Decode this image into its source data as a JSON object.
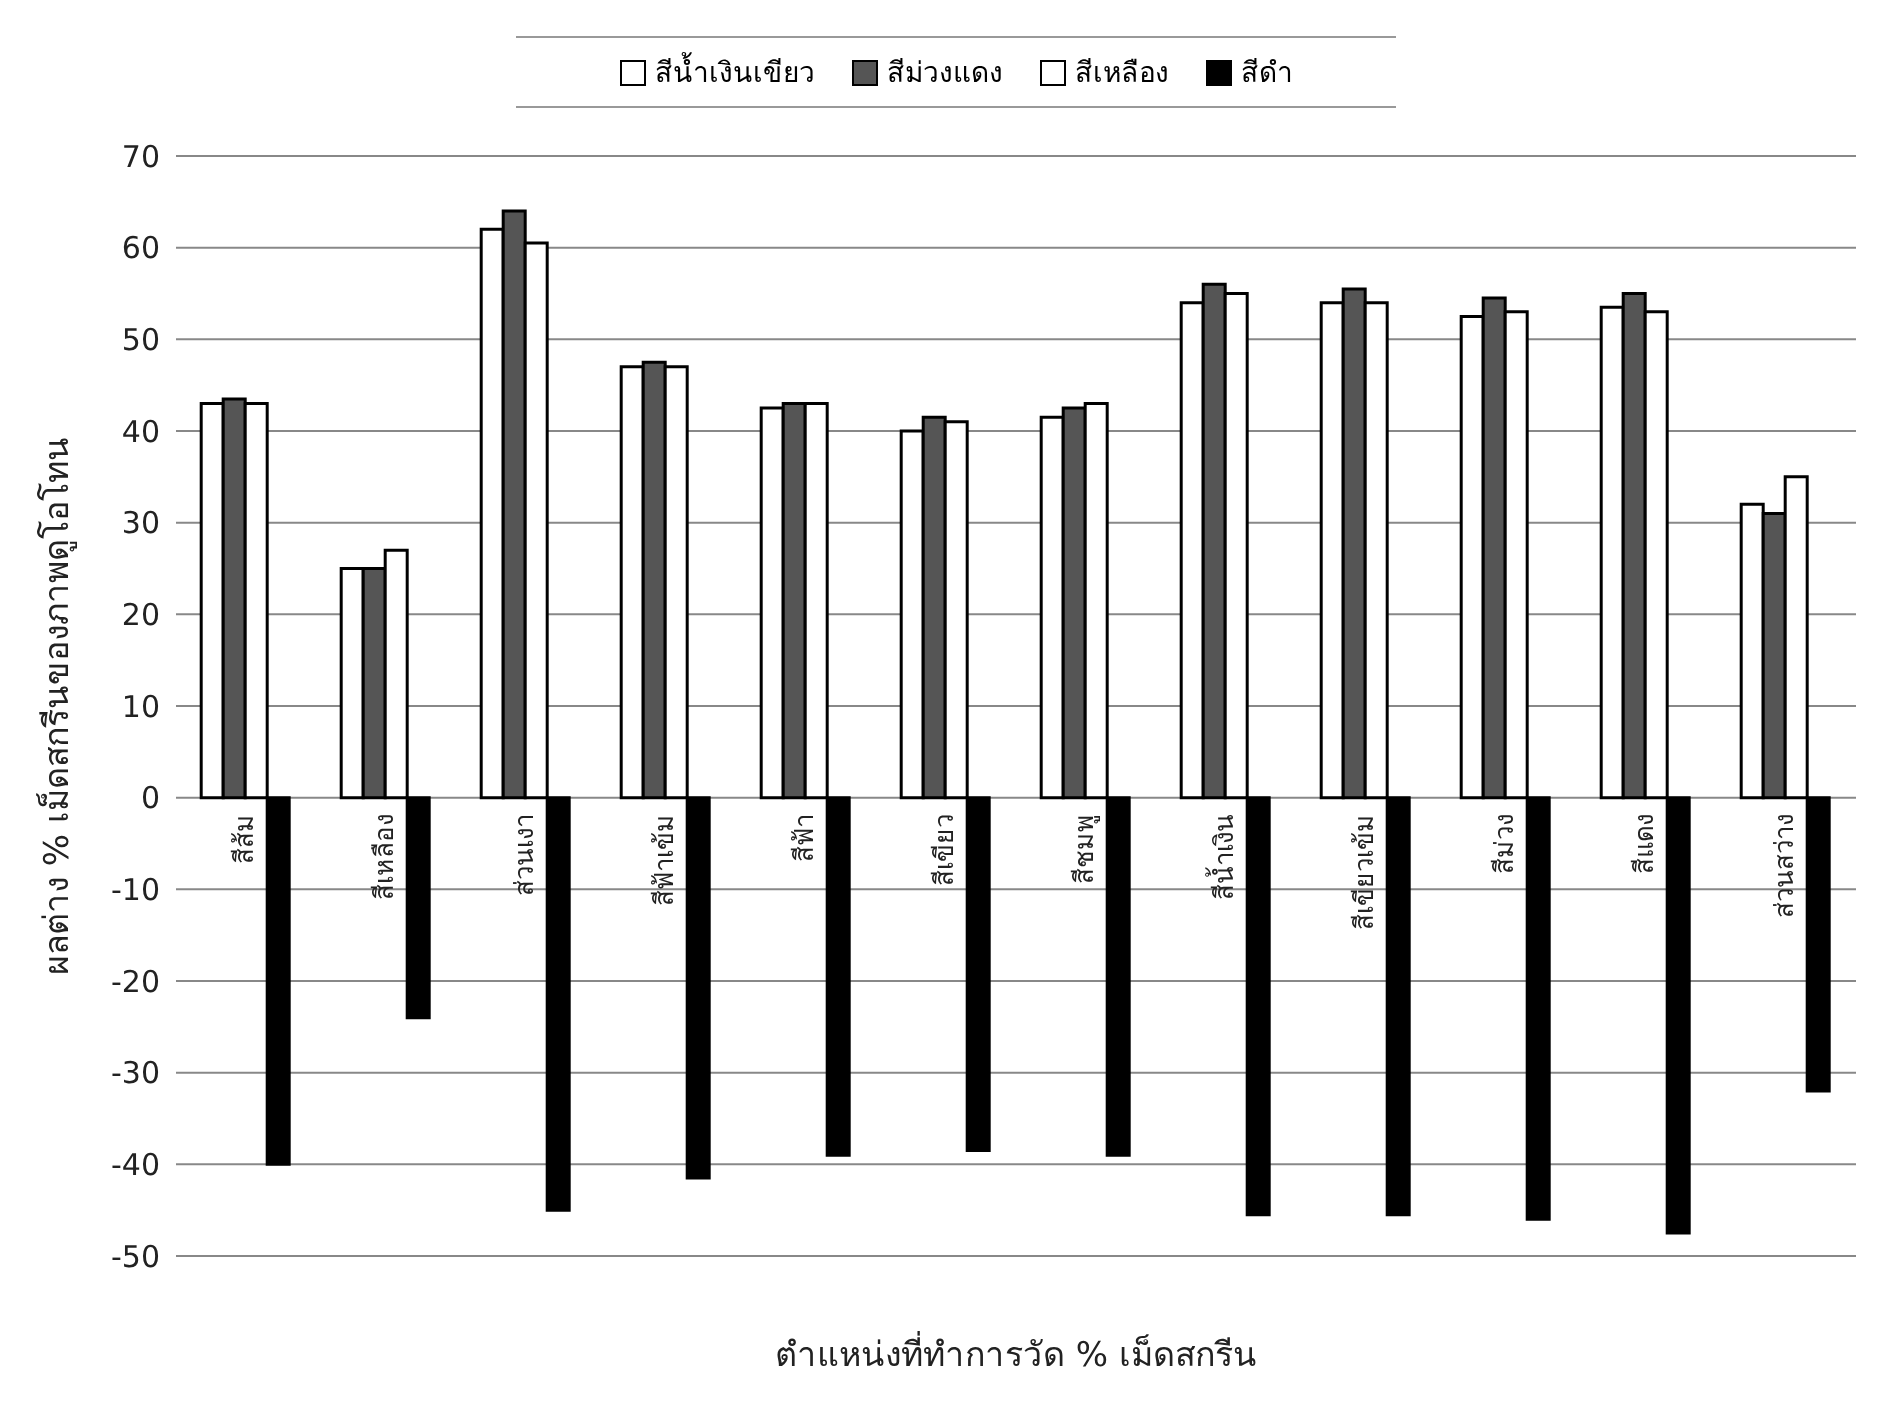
{
  "chart_data": {
    "type": "bar",
    "xlabel": "ตำแหน่งที่ทำการวัด   % เม็ดสกรีน",
    "ylabel": "ผลต่าง % เม็ดสกรีนของภาพดูโอโทน",
    "categories": [
      "สีส้ม",
      "สีเหลือง",
      "ส่วนเงา",
      "สีฟ้าเข้ม",
      "สีฟ้า",
      "สีเขียว",
      "สีชมพู",
      "สีน้ำเงิน",
      "สีเขียวเข้ม",
      "สีม่วง",
      "สีแดง",
      "ส่วนสว่าง"
    ],
    "series": [
      {
        "name": "สีน้ำเงินเขียว",
        "color": "#ffffff",
        "values": [
          43,
          25,
          62,
          47,
          42.5,
          40,
          41.5,
          54,
          54,
          52.5,
          53.5,
          32
        ]
      },
      {
        "name": "สีม่วงแดง",
        "color": "#555555",
        "values": [
          43.5,
          25,
          64,
          47.5,
          43,
          41.5,
          42.5,
          56,
          55.5,
          54.5,
          55,
          31
        ]
      },
      {
        "name": "สีเหลือง",
        "color": "#ffffff",
        "values": [
          43,
          27,
          60.5,
          47,
          43,
          41,
          43,
          55,
          54,
          53,
          53,
          35
        ]
      },
      {
        "name": "สีดำ",
        "color": "#000000",
        "values": [
          -40,
          -24,
          -45,
          -41.5,
          -39,
          -38.5,
          -39,
          -45.5,
          -45.5,
          -46,
          -47.5,
          -32
        ]
      }
    ],
    "ylim": [
      -50,
      70
    ],
    "yticks": [
      -50,
      -40,
      -30,
      -20,
      -10,
      0,
      10,
      20,
      30,
      40,
      50,
      60,
      70
    ],
    "grid": "y",
    "legend": "top"
  }
}
